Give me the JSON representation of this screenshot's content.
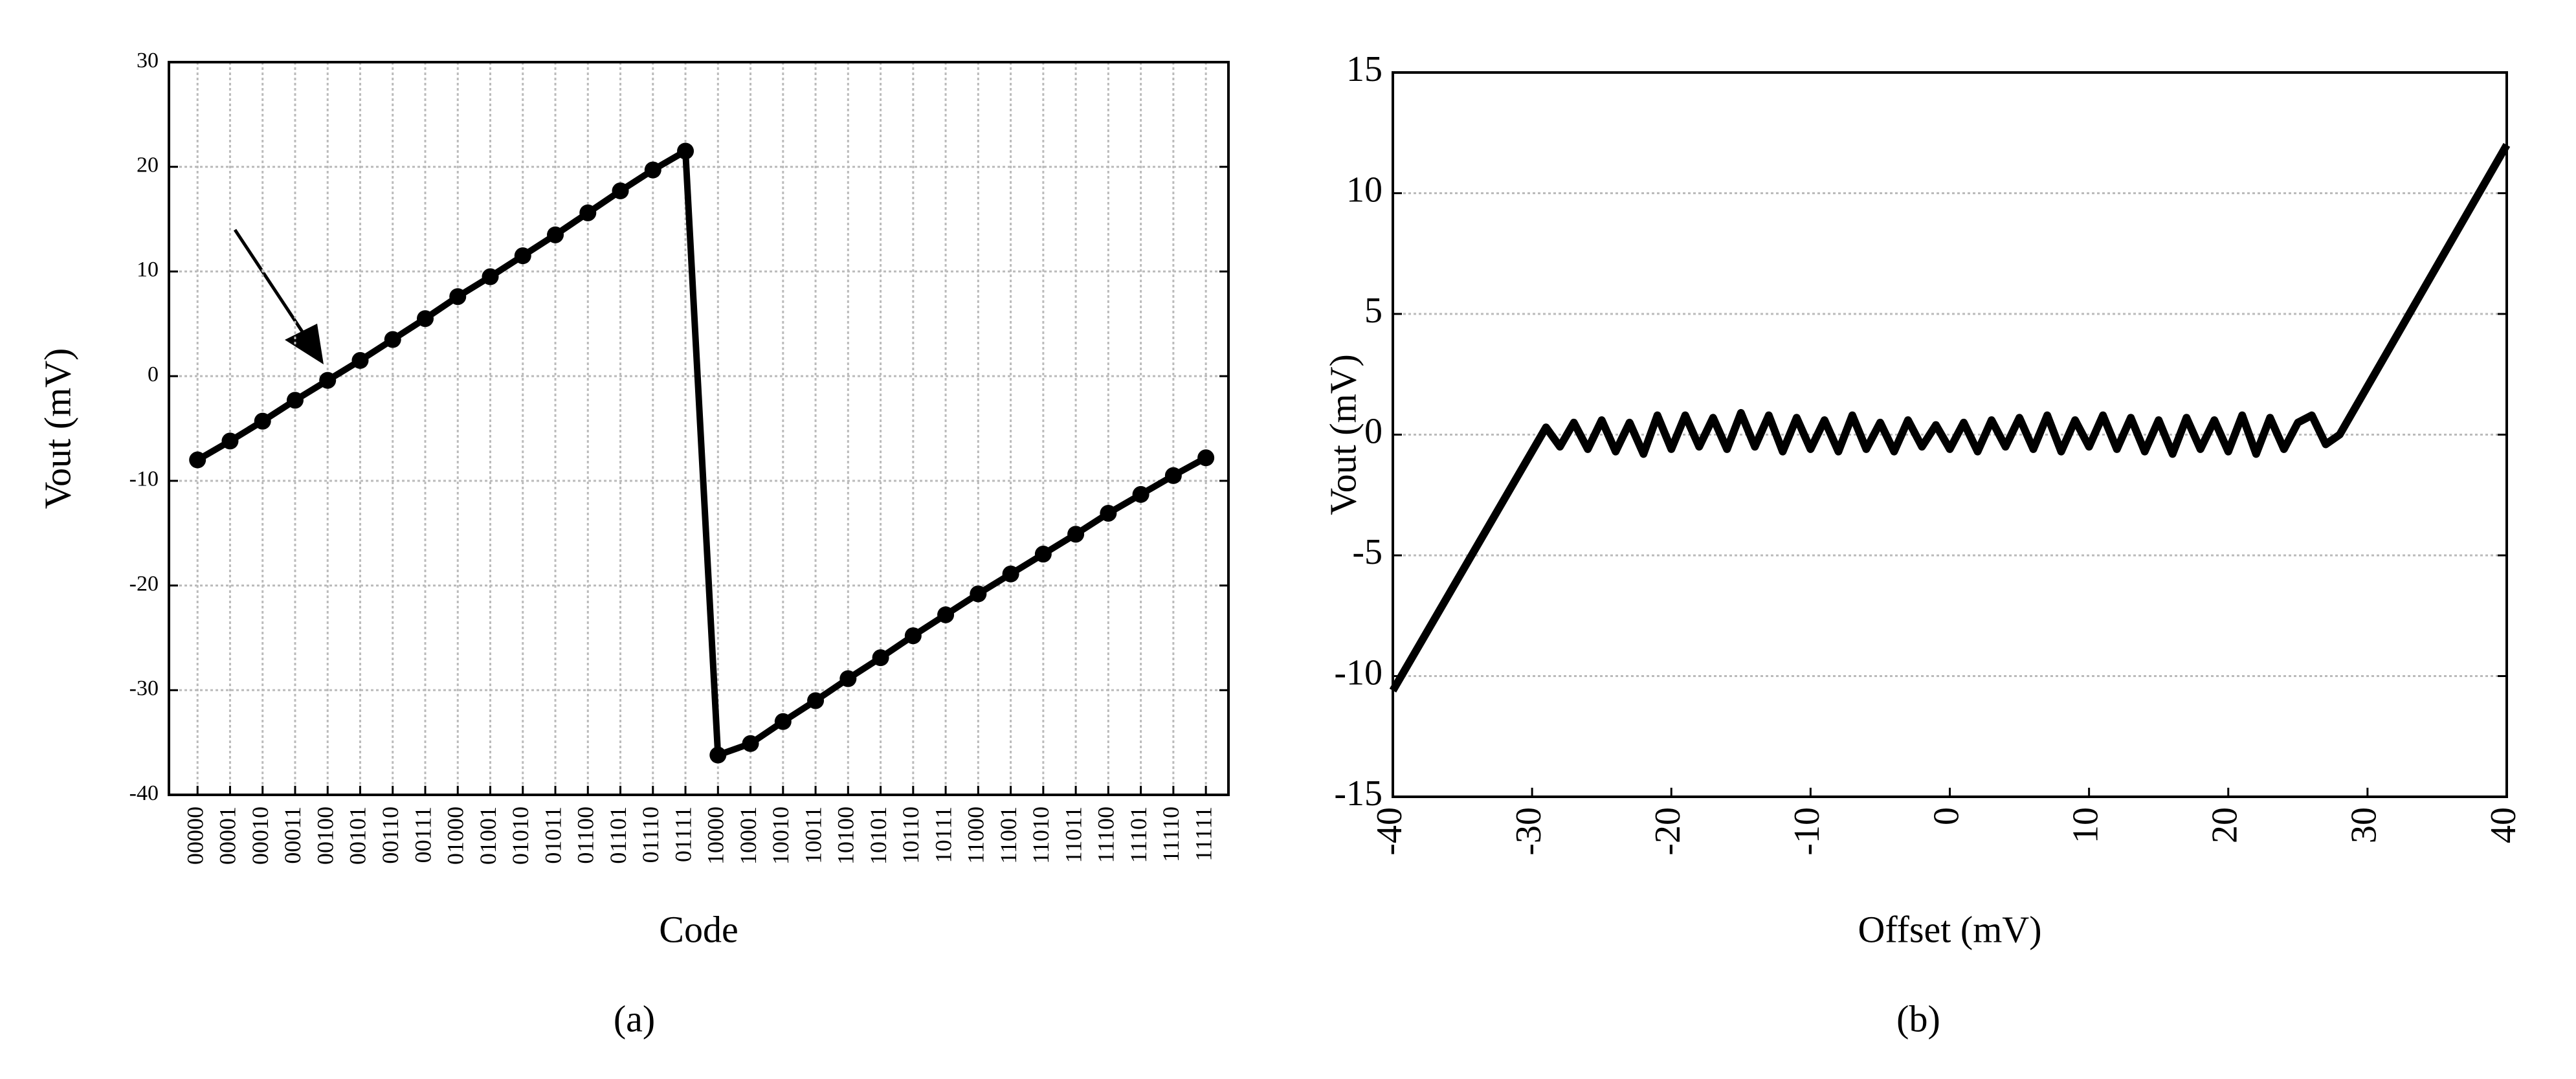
{
  "chart_data": [
    {
      "type": "line",
      "caption": "(a)",
      "xlabel": "Code",
      "ylabel": "Vout (mV)",
      "categories": [
        "00000",
        "00001",
        "00010",
        "00011",
        "00100",
        "00101",
        "00110",
        "00111",
        "01000",
        "01001",
        "01010",
        "01011",
        "01100",
        "01101",
        "01110",
        "01111",
        "10000",
        "10001",
        "10010",
        "10011",
        "10100",
        "10101",
        "10110",
        "10111",
        "11000",
        "11001",
        "11010",
        "11011",
        "11100",
        "11101",
        "11110",
        "11111"
      ],
      "values": [
        -8,
        -6.2,
        -4.3,
        -2.3,
        -0.4,
        1.5,
        3.5,
        5.5,
        7.6,
        9.5,
        11.5,
        13.5,
        15.6,
        17.7,
        19.7,
        21.5,
        -36.2,
        -35.1,
        -33,
        -31,
        -28.9,
        -26.9,
        -24.8,
        -22.8,
        -20.8,
        -18.9,
        -17,
        -15.1,
        -13.1,
        -11.3,
        -9.5,
        -7.8
      ],
      "color": "#000000",
      "markers": true,
      "grid": "both",
      "ylim": [
        -40,
        30
      ],
      "yticks": [
        -40,
        -30,
        -20,
        -10,
        0,
        10,
        20,
        30
      ]
    },
    {
      "type": "line",
      "caption": "(b)",
      "xlabel": "Offset (mV)",
      "ylabel": "Vout (mV)",
      "x": [
        -40,
        -29,
        -28,
        -27,
        -26,
        -25,
        -24,
        -23,
        -22,
        -21,
        -20,
        -19,
        -18,
        -17,
        -16,
        -15,
        -14,
        -13,
        -12,
        -11,
        -10,
        -9,
        -8,
        -7,
        -6,
        -5,
        -4,
        -3,
        -2,
        -1,
        0,
        1,
        2,
        3,
        4,
        5,
        6,
        7,
        8,
        9,
        10,
        11,
        12,
        13,
        14,
        15,
        16,
        17,
        18,
        19,
        20,
        21,
        22,
        23,
        24,
        25,
        26,
        27,
        28,
        40
      ],
      "values": [
        -10.6,
        0.3,
        -0.5,
        0.5,
        -0.6,
        0.6,
        -0.7,
        0.5,
        -0.8,
        0.8,
        -0.6,
        0.8,
        -0.5,
        0.7,
        -0.6,
        0.9,
        -0.5,
        0.8,
        -0.7,
        0.7,
        -0.6,
        0.6,
        -0.7,
        0.8,
        -0.6,
        0.5,
        -0.7,
        0.6,
        -0.5,
        0.4,
        -0.6,
        0.5,
        -0.7,
        0.6,
        -0.5,
        0.7,
        -0.6,
        0.8,
        -0.7,
        0.6,
        -0.5,
        0.8,
        -0.6,
        0.7,
        -0.7,
        0.6,
        -0.8,
        0.7,
        -0.6,
        0.6,
        -0.7,
        0.8,
        -0.8,
        0.7,
        -0.6,
        0.5,
        0.8,
        -0.4,
        0,
        12
      ],
      "color": "#000000",
      "markers": false,
      "grid": "y",
      "xlim": [
        -40,
        40
      ],
      "xticks": [
        -40,
        -30,
        -20,
        -10,
        0,
        10,
        20,
        30,
        40
      ],
      "ylim": [
        -15,
        15
      ],
      "yticks": [
        -15,
        -10,
        -5,
        0,
        5,
        10,
        15
      ]
    }
  ]
}
